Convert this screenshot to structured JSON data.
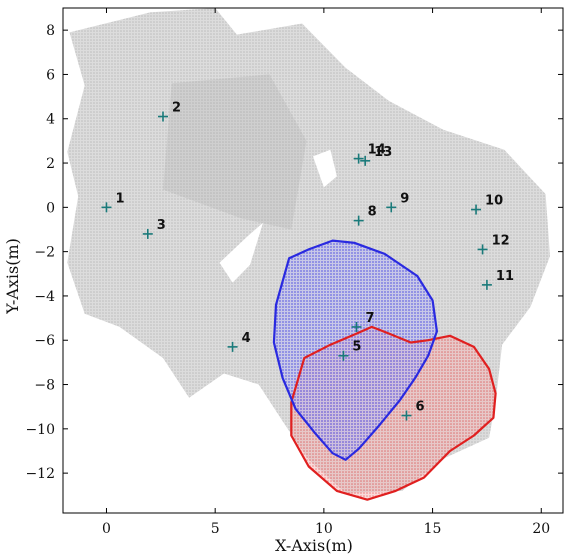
{
  "chart_data": {
    "type": "scatter",
    "xlabel": "X-Axis(m)",
    "ylabel": "Y-Axis(m)",
    "xlim": [
      -2.0,
      21.0
    ],
    "ylim": [
      -13.8,
      9.0
    ],
    "x_ticks": [
      0,
      5,
      10,
      15,
      20
    ],
    "y_ticks": [
      8,
      6,
      4,
      2,
      0,
      -2,
      -4,
      -6,
      -8,
      -10,
      -12
    ],
    "grid": false,
    "marker_color": "#1a7a7a",
    "gray_map_color": "#c8c8c8",
    "blue_region_color": "#2a2ae0",
    "red_region_color": "#e02020",
    "points": [
      {
        "label": "1",
        "x": 0.0,
        "y": 0.0
      },
      {
        "label": "2",
        "x": 2.6,
        "y": 4.1
      },
      {
        "label": "3",
        "x": 1.9,
        "y": -1.2
      },
      {
        "label": "4",
        "x": 5.8,
        "y": -6.3
      },
      {
        "label": "5",
        "x": 10.9,
        "y": -6.7
      },
      {
        "label": "6",
        "x": 13.8,
        "y": -9.4
      },
      {
        "label": "7",
        "x": 11.5,
        "y": -5.4
      },
      {
        "label": "8",
        "x": 11.6,
        "y": -0.6
      },
      {
        "label": "9",
        "x": 13.1,
        "y": 0.0
      },
      {
        "label": "10",
        "x": 17.0,
        "y": -0.1
      },
      {
        "label": "11",
        "x": 17.5,
        "y": -3.5
      },
      {
        "label": "12",
        "x": 17.3,
        "y": -1.9
      },
      {
        "label": "13",
        "x": 11.9,
        "y": 2.1
      },
      {
        "label": "14",
        "x": 11.6,
        "y": 2.2
      }
    ],
    "blue_region": [
      [
        8.4,
        -2.3
      ],
      [
        9.3,
        -1.9
      ],
      [
        10.4,
        -1.5
      ],
      [
        11.4,
        -1.6
      ],
      [
        12.8,
        -2.1
      ],
      [
        14.3,
        -3.1
      ],
      [
        15.0,
        -4.2
      ],
      [
        15.2,
        -5.6
      ],
      [
        14.8,
        -6.7
      ],
      [
        14.2,
        -7.7
      ],
      [
        13.5,
        -8.7
      ],
      [
        12.5,
        -9.9
      ],
      [
        11.6,
        -10.9
      ],
      [
        11.0,
        -11.4
      ],
      [
        10.4,
        -11.1
      ],
      [
        9.6,
        -10.2
      ],
      [
        8.7,
        -9.1
      ],
      [
        8.1,
        -7.7
      ],
      [
        7.7,
        -6.1
      ],
      [
        7.8,
        -4.4
      ],
      [
        8.4,
        -2.3
      ]
    ],
    "red_region": [
      [
        9.1,
        -6.8
      ],
      [
        10.3,
        -6.2
      ],
      [
        11.5,
        -5.7
      ],
      [
        12.2,
        -5.4
      ],
      [
        13.0,
        -5.7
      ],
      [
        14.0,
        -6.1
      ],
      [
        14.8,
        -6.0
      ],
      [
        15.8,
        -5.8
      ],
      [
        16.9,
        -6.3
      ],
      [
        17.6,
        -7.3
      ],
      [
        17.9,
        -8.4
      ],
      [
        17.8,
        -9.5
      ],
      [
        16.9,
        -10.3
      ],
      [
        15.8,
        -11.0
      ],
      [
        14.6,
        -12.2
      ],
      [
        13.3,
        -12.8
      ],
      [
        12.0,
        -13.2
      ],
      [
        10.6,
        -12.8
      ],
      [
        9.3,
        -11.7
      ],
      [
        8.5,
        -10.3
      ],
      [
        8.5,
        -8.8
      ],
      [
        9.1,
        -6.8
      ]
    ],
    "gray_map_region": [
      [
        -1.7,
        7.9
      ],
      [
        2.0,
        8.8
      ],
      [
        5.0,
        9.0
      ],
      [
        6.0,
        7.8
      ],
      [
        9.0,
        8.3
      ],
      [
        11.0,
        6.3
      ],
      [
        13.0,
        4.8
      ],
      [
        15.5,
        3.5
      ],
      [
        18.3,
        2.6
      ],
      [
        20.2,
        0.6
      ],
      [
        20.4,
        -2.2
      ],
      [
        19.5,
        -4.5
      ],
      [
        18.2,
        -6.2
      ],
      [
        17.9,
        -8.8
      ],
      [
        17.6,
        -10.4
      ],
      [
        15.6,
        -11.3
      ],
      [
        13.6,
        -12.8
      ],
      [
        11.0,
        -12.9
      ],
      [
        9.3,
        -11.4
      ],
      [
        8.2,
        -9.8
      ],
      [
        7.0,
        -8.0
      ],
      [
        5.4,
        -7.5
      ],
      [
        3.8,
        -8.6
      ],
      [
        2.6,
        -6.8
      ],
      [
        0.6,
        -5.4
      ],
      [
        -1.0,
        -4.8
      ],
      [
        -1.8,
        -2.5
      ],
      [
        -1.3,
        0.5
      ],
      [
        -1.8,
        2.5
      ],
      [
        -1.0,
        5.5
      ],
      [
        -1.7,
        7.9
      ]
    ],
    "gray_map_holes": [
      [
        [
          5.2,
          -2.5
        ],
        [
          6.5,
          -1.3
        ],
        [
          7.2,
          -0.7
        ],
        [
          6.6,
          -2.6
        ],
        [
          5.8,
          -3.4
        ],
        [
          5.2,
          -2.5
        ]
      ],
      [
        [
          9.5,
          2.3
        ],
        [
          10.3,
          2.6
        ],
        [
          10.6,
          1.4
        ],
        [
          10.0,
          0.9
        ],
        [
          9.5,
          2.3
        ]
      ]
    ],
    "dark_cluster_region": [
      [
        3.0,
        5.6
      ],
      [
        7.5,
        6.0
      ],
      [
        9.2,
        3.0
      ],
      [
        8.5,
        -1.0
      ],
      [
        6.2,
        -0.5
      ],
      [
        2.6,
        0.8
      ],
      [
        3.0,
        5.6
      ]
    ]
  }
}
